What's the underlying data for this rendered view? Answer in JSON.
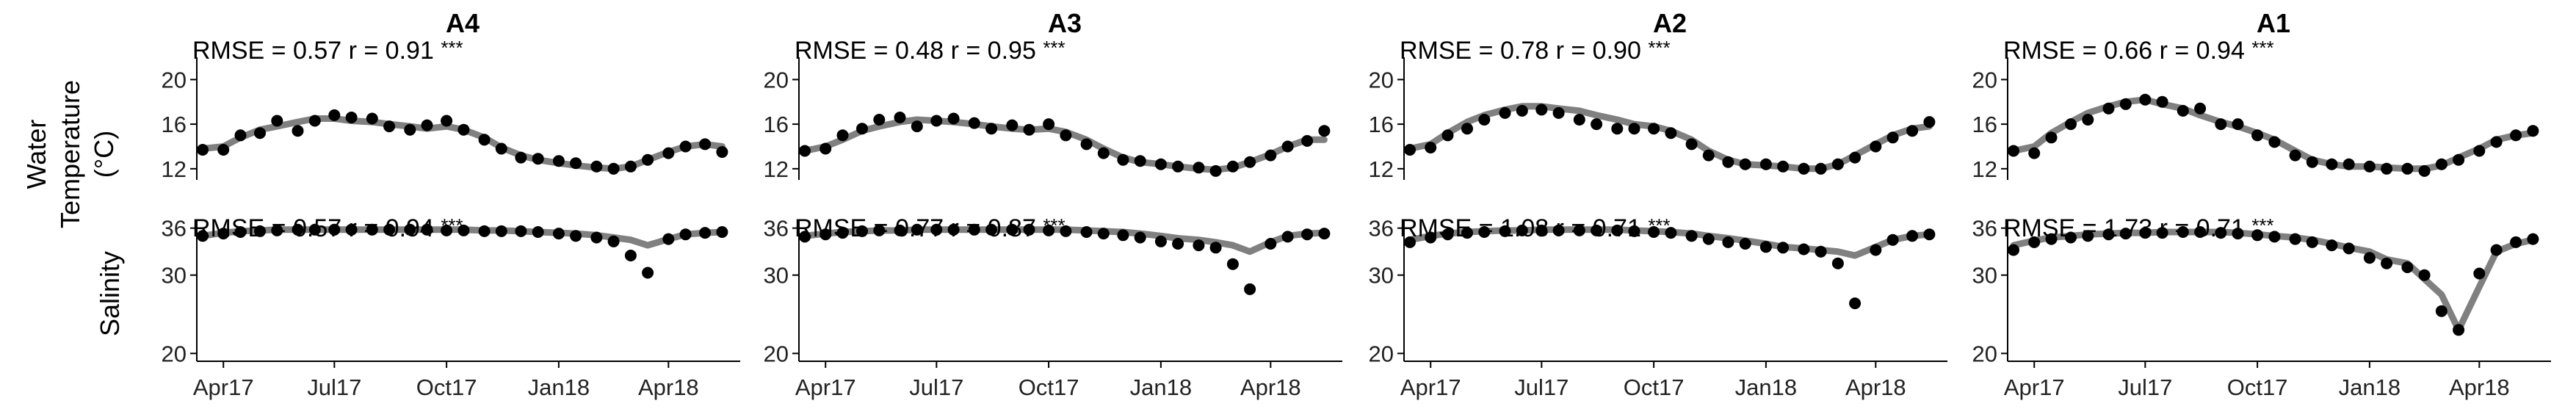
{
  "figure": {
    "row_labels": {
      "temperature": [
        "Water",
        "Temperature",
        "(°C)"
      ],
      "salinity": "Salinity"
    },
    "x_ticks": [
      "Apr17",
      "Jul17",
      "Oct17",
      "Jan18",
      "Apr18"
    ],
    "temperature_y_ticks": [
      "20",
      "16",
      "12"
    ],
    "salinity_y_ticks": [
      "36",
      "30",
      "20"
    ],
    "colors": {
      "model_line": "#808080",
      "observation_points": "#000000",
      "axes": "#000000"
    }
  },
  "chart_data": [
    {
      "type": "line",
      "title": "A4",
      "ylabel": "Water Temperature (°C)",
      "x": [
        "2017-03-15",
        "2017-04-01",
        "2017-04-15",
        "2017-05-01",
        "2017-05-15",
        "2017-06-01",
        "2017-06-15",
        "2017-07-01",
        "2017-07-15",
        "2017-08-01",
        "2017-08-15",
        "2017-09-01",
        "2017-09-15",
        "2017-10-01",
        "2017-10-15",
        "2017-11-01",
        "2017-11-15",
        "2017-12-01",
        "2017-12-15",
        "2018-01-01",
        "2018-01-15",
        "2018-02-01",
        "2018-02-15",
        "2018-03-01",
        "2018-03-15",
        "2018-04-01",
        "2018-04-15",
        "2018-05-01",
        "2018-05-15"
      ],
      "ylim": [
        11,
        22
      ],
      "grid": false,
      "annotation": {
        "rmse_label": "RMSE = 0.57",
        "r_label": "r = 0.91",
        "significance": "***"
      },
      "series": [
        {
          "role": "model",
          "values": [
            13.8,
            14.0,
            14.8,
            15.5,
            15.8,
            16.2,
            16.5,
            16.5,
            16.3,
            16.2,
            16.0,
            15.8,
            15.6,
            15.8,
            15.5,
            14.8,
            13.9,
            13.2,
            12.8,
            12.5,
            12.3,
            12.1,
            12.0,
            12.2,
            12.8,
            13.5,
            14.0,
            14.2,
            14.0
          ]
        },
        {
          "role": "observed",
          "values": [
            13.7,
            13.7,
            15.0,
            15.2,
            16.3,
            15.4,
            16.3,
            16.8,
            16.6,
            16.5,
            15.8,
            15.5,
            15.9,
            16.3,
            15.5,
            14.6,
            13.8,
            13.0,
            12.9,
            12.7,
            12.5,
            12.2,
            12.0,
            12.2,
            12.8,
            13.4,
            14.0,
            14.2,
            13.5
          ]
        }
      ]
    },
    {
      "type": "line",
      "title": "A4",
      "ylabel": "Salinity",
      "x": [
        "2017-03-15",
        "2017-04-01",
        "2017-04-15",
        "2017-05-01",
        "2017-05-15",
        "2017-06-01",
        "2017-06-15",
        "2017-07-01",
        "2017-07-15",
        "2017-08-01",
        "2017-08-15",
        "2017-09-01",
        "2017-09-15",
        "2017-10-01",
        "2017-10-15",
        "2017-11-01",
        "2017-11-15",
        "2017-12-01",
        "2017-12-15",
        "2018-01-01",
        "2018-01-15",
        "2018-02-01",
        "2018-02-15",
        "2018-03-01",
        "2018-03-15",
        "2018-04-01",
        "2018-04-15",
        "2018-05-01",
        "2018-05-15"
      ],
      "ylim": [
        19,
        37
      ],
      "grid": false,
      "annotation": {
        "rmse_label": "RMSE = 0.57",
        "r_label": "r = 0.94",
        "significance": "***"
      },
      "series": [
        {
          "role": "model",
          "values": [
            35.0,
            35.4,
            35.6,
            35.7,
            35.8,
            35.8,
            35.8,
            35.8,
            35.8,
            35.8,
            35.8,
            35.8,
            35.8,
            35.8,
            35.8,
            35.7,
            35.7,
            35.6,
            35.5,
            35.4,
            35.3,
            35.1,
            34.8,
            34.5,
            33.8,
            34.6,
            35.2,
            35.4,
            35.5
          ]
        },
        {
          "role": "observed",
          "values": [
            35.0,
            35.3,
            35.5,
            35.6,
            35.7,
            35.8,
            35.8,
            35.8,
            35.8,
            35.8,
            35.8,
            35.8,
            35.8,
            35.7,
            35.7,
            35.6,
            35.6,
            35.6,
            35.5,
            35.3,
            35.0,
            34.8,
            34.3,
            32.5,
            30.3,
            34.6,
            35.2,
            35.4,
            35.5
          ]
        }
      ]
    },
    {
      "type": "line",
      "title": "A3",
      "ylabel": "Water Temperature (°C)",
      "x": [
        "2017-03-15",
        "2017-04-01",
        "2017-04-15",
        "2017-05-01",
        "2017-05-15",
        "2017-06-01",
        "2017-06-15",
        "2017-07-01",
        "2017-07-15",
        "2017-08-01",
        "2017-08-15",
        "2017-09-01",
        "2017-09-15",
        "2017-10-01",
        "2017-10-15",
        "2017-11-01",
        "2017-11-15",
        "2017-12-01",
        "2017-12-15",
        "2018-01-01",
        "2018-01-15",
        "2018-02-01",
        "2018-02-15",
        "2018-03-01",
        "2018-03-15",
        "2018-04-01",
        "2018-04-15",
        "2018-05-01",
        "2018-05-15"
      ],
      "ylim": [
        11,
        22
      ],
      "grid": false,
      "annotation": {
        "rmse_label": "RMSE = 0.48",
        "r_label": "r = 0.95",
        "significance": "***"
      },
      "series": [
        {
          "role": "model",
          "values": [
            13.6,
            14.0,
            14.6,
            15.4,
            15.8,
            16.2,
            16.4,
            16.3,
            16.2,
            16.0,
            15.8,
            15.6,
            15.5,
            15.6,
            15.3,
            14.6,
            13.8,
            13.0,
            12.6,
            12.4,
            12.2,
            12.0,
            11.9,
            12.1,
            12.6,
            13.3,
            14.0,
            14.6,
            14.6
          ]
        },
        {
          "role": "observed",
          "values": [
            13.6,
            13.8,
            15.0,
            15.6,
            16.4,
            16.6,
            15.8,
            16.3,
            16.5,
            16.1,
            15.6,
            15.9,
            15.5,
            16.0,
            15.0,
            14.2,
            13.4,
            12.8,
            12.7,
            12.4,
            12.2,
            12.1,
            11.8,
            12.2,
            12.6,
            13.2,
            14.0,
            14.5,
            15.4
          ]
        }
      ]
    },
    {
      "type": "line",
      "title": "A3",
      "ylabel": "Salinity",
      "x": [
        "2017-03-15",
        "2017-04-01",
        "2017-04-15",
        "2017-05-01",
        "2017-05-15",
        "2017-06-01",
        "2017-06-15",
        "2017-07-01",
        "2017-07-15",
        "2017-08-01",
        "2017-08-15",
        "2017-09-01",
        "2017-09-15",
        "2017-10-01",
        "2017-10-15",
        "2017-11-01",
        "2017-11-15",
        "2017-12-01",
        "2017-12-15",
        "2018-01-01",
        "2018-01-15",
        "2018-02-01",
        "2018-02-15",
        "2018-03-01",
        "2018-03-15",
        "2018-04-01",
        "2018-04-15",
        "2018-05-01",
        "2018-05-15"
      ],
      "ylim": [
        19,
        37
      ],
      "grid": false,
      "annotation": {
        "rmse_label": "RMSE = 0.77",
        "r_label": "r = 0.87",
        "significance": "***"
      },
      "series": [
        {
          "role": "model",
          "values": [
            35.0,
            35.3,
            35.5,
            35.6,
            35.7,
            35.7,
            35.8,
            35.8,
            35.8,
            35.8,
            35.8,
            35.8,
            35.8,
            35.8,
            35.8,
            35.7,
            35.6,
            35.5,
            35.3,
            35.0,
            34.7,
            34.5,
            34.2,
            33.8,
            33.0,
            34.2,
            35.0,
            35.3,
            35.4
          ]
        },
        {
          "role": "observed",
          "values": [
            34.9,
            35.2,
            35.4,
            35.6,
            35.7,
            35.7,
            35.8,
            35.8,
            35.8,
            35.8,
            35.8,
            35.8,
            35.8,
            35.7,
            35.6,
            35.5,
            35.3,
            35.1,
            34.8,
            34.3,
            34.0,
            33.8,
            33.5,
            31.4,
            28.2,
            34.0,
            34.9,
            35.2,
            35.3
          ]
        }
      ]
    },
    {
      "type": "line",
      "title": "A2",
      "ylabel": "Water Temperature (°C)",
      "x": [
        "2017-03-15",
        "2017-04-01",
        "2017-04-15",
        "2017-05-01",
        "2017-05-15",
        "2017-06-01",
        "2017-06-15",
        "2017-07-01",
        "2017-07-15",
        "2017-08-01",
        "2017-08-15",
        "2017-09-01",
        "2017-09-15",
        "2017-10-01",
        "2017-10-15",
        "2017-11-01",
        "2017-11-15",
        "2017-12-01",
        "2017-12-15",
        "2018-01-01",
        "2018-01-15",
        "2018-02-01",
        "2018-02-15",
        "2018-03-01",
        "2018-03-15",
        "2018-04-01",
        "2018-04-15",
        "2018-05-01",
        "2018-05-15"
      ],
      "ylim": [
        11,
        22
      ],
      "grid": false,
      "annotation": {
        "rmse_label": "RMSE = 0.78",
        "r_label": "r = 0.90",
        "significance": "***"
      },
      "series": [
        {
          "role": "model",
          "values": [
            13.8,
            14.2,
            15.2,
            16.2,
            16.8,
            17.3,
            17.6,
            17.6,
            17.4,
            17.2,
            16.8,
            16.4,
            16.0,
            15.8,
            15.4,
            14.6,
            13.6,
            12.8,
            12.4,
            12.3,
            12.2,
            12.0,
            12.0,
            12.4,
            13.2,
            14.2,
            15.0,
            15.6,
            15.8
          ]
        },
        {
          "role": "observed",
          "values": [
            13.7,
            13.9,
            15.0,
            15.6,
            16.4,
            17.0,
            17.2,
            17.3,
            17.0,
            16.4,
            16.0,
            15.6,
            15.6,
            15.6,
            15.2,
            14.2,
            13.2,
            12.6,
            12.4,
            12.4,
            12.2,
            12.0,
            12.0,
            12.4,
            13.0,
            14.0,
            14.8,
            15.4,
            16.2
          ]
        }
      ]
    },
    {
      "type": "line",
      "title": "A2",
      "ylabel": "Salinity",
      "x": [
        "2017-03-15",
        "2017-04-01",
        "2017-04-15",
        "2017-05-01",
        "2017-05-15",
        "2017-06-01",
        "2017-06-15",
        "2017-07-01",
        "2017-07-15",
        "2017-08-01",
        "2017-08-15",
        "2017-09-01",
        "2017-09-15",
        "2017-10-01",
        "2017-10-15",
        "2017-11-01",
        "2017-11-15",
        "2017-12-01",
        "2017-12-15",
        "2018-01-01",
        "2018-01-15",
        "2018-02-01",
        "2018-02-15",
        "2018-03-01",
        "2018-03-15",
        "2018-04-01",
        "2018-04-15",
        "2018-05-01",
        "2018-05-15"
      ],
      "ylim": [
        19,
        37
      ],
      "grid": false,
      "annotation": {
        "rmse_label": "RMSE = 1.08",
        "r_label": "r = 0.71",
        "significance": "***"
      },
      "series": [
        {
          "role": "model",
          "values": [
            34.5,
            35.0,
            35.3,
            35.5,
            35.6,
            35.7,
            35.7,
            35.8,
            35.8,
            35.8,
            35.8,
            35.8,
            35.7,
            35.6,
            35.5,
            35.3,
            35.0,
            34.7,
            34.4,
            34.0,
            33.6,
            33.4,
            33.2,
            33.0,
            32.5,
            33.6,
            34.5,
            35.0,
            35.2
          ]
        },
        {
          "role": "observed",
          "values": [
            34.2,
            34.8,
            35.2,
            35.4,
            35.5,
            35.6,
            35.7,
            35.7,
            35.7,
            35.7,
            35.7,
            35.7,
            35.6,
            35.5,
            35.4,
            35.0,
            34.6,
            34.2,
            34.0,
            33.6,
            33.5,
            33.3,
            33.0,
            31.5,
            26.4,
            33.2,
            34.5,
            35.0,
            35.2
          ]
        }
      ]
    },
    {
      "type": "line",
      "title": "A1",
      "ylabel": "Water Temperature (°C)",
      "x": [
        "2017-03-15",
        "2017-04-01",
        "2017-04-15",
        "2017-05-01",
        "2017-05-15",
        "2017-06-01",
        "2017-06-15",
        "2017-07-01",
        "2017-07-15",
        "2017-08-01",
        "2017-08-15",
        "2017-09-01",
        "2017-09-15",
        "2017-10-01",
        "2017-10-15",
        "2017-11-01",
        "2017-11-15",
        "2017-12-01",
        "2017-12-15",
        "2018-01-01",
        "2018-01-15",
        "2018-02-01",
        "2018-02-15",
        "2018-03-01",
        "2018-03-15",
        "2018-04-01",
        "2018-04-15",
        "2018-05-01",
        "2018-05-15"
      ],
      "ylim": [
        11,
        22
      ],
      "grid": false,
      "annotation": {
        "rmse_label": "RMSE = 0.66",
        "r_label": "r = 0.94",
        "significance": "***"
      },
      "series": [
        {
          "role": "model",
          "values": [
            13.6,
            14.0,
            15.2,
            16.2,
            17.0,
            17.6,
            18.0,
            18.2,
            17.8,
            17.4,
            16.8,
            16.2,
            15.8,
            15.2,
            14.6,
            13.6,
            12.8,
            12.4,
            12.2,
            12.2,
            12.1,
            12.0,
            12.0,
            12.3,
            13.0,
            13.8,
            14.6,
            15.0,
            15.2
          ]
        },
        {
          "role": "observed",
          "values": [
            13.6,
            13.4,
            14.8,
            16.0,
            16.4,
            17.4,
            17.8,
            18.2,
            18.0,
            17.2,
            17.4,
            16.0,
            16.0,
            15.0,
            14.4,
            13.2,
            12.6,
            12.4,
            12.4,
            12.2,
            12.0,
            12.0,
            11.8,
            12.4,
            12.8,
            13.6,
            14.4,
            15.0,
            15.4
          ]
        }
      ]
    },
    {
      "type": "line",
      "title": "A1",
      "ylabel": "Salinity",
      "x": [
        "2017-03-15",
        "2017-04-01",
        "2017-04-15",
        "2017-05-01",
        "2017-05-15",
        "2017-06-01",
        "2017-06-15",
        "2017-07-01",
        "2017-07-15",
        "2017-08-01",
        "2017-08-15",
        "2017-09-01",
        "2017-09-15",
        "2017-10-01",
        "2017-10-15",
        "2017-11-01",
        "2017-11-15",
        "2017-12-01",
        "2017-12-15",
        "2018-01-01",
        "2018-01-15",
        "2018-02-01",
        "2018-02-15",
        "2018-03-01",
        "2018-03-15",
        "2018-04-01",
        "2018-04-15",
        "2018-05-01",
        "2018-05-15"
      ],
      "ylim": [
        19,
        37
      ],
      "grid": false,
      "annotation": {
        "rmse_label": "RMSE = 1.73",
        "r_label": "r = 0.71",
        "significance": "***"
      },
      "series": [
        {
          "role": "model",
          "values": [
            33.8,
            34.4,
            34.8,
            35.0,
            35.2,
            35.3,
            35.4,
            35.4,
            35.5,
            35.5,
            35.5,
            35.5,
            35.4,
            35.2,
            35.0,
            34.8,
            34.5,
            34.0,
            33.5,
            33.0,
            32.0,
            31.5,
            29.5,
            27.5,
            23.0,
            28.5,
            33.0,
            34.0,
            34.5
          ]
        },
        {
          "role": "observed",
          "values": [
            33.2,
            34.2,
            34.6,
            34.8,
            35.0,
            35.2,
            35.3,
            35.4,
            35.4,
            35.5,
            35.5,
            35.4,
            35.3,
            35.1,
            34.9,
            34.6,
            34.2,
            33.8,
            33.4,
            32.2,
            31.5,
            31.0,
            30.0,
            25.4,
            23.0,
            30.2,
            33.2,
            34.2,
            34.6
          ]
        }
      ]
    }
  ]
}
